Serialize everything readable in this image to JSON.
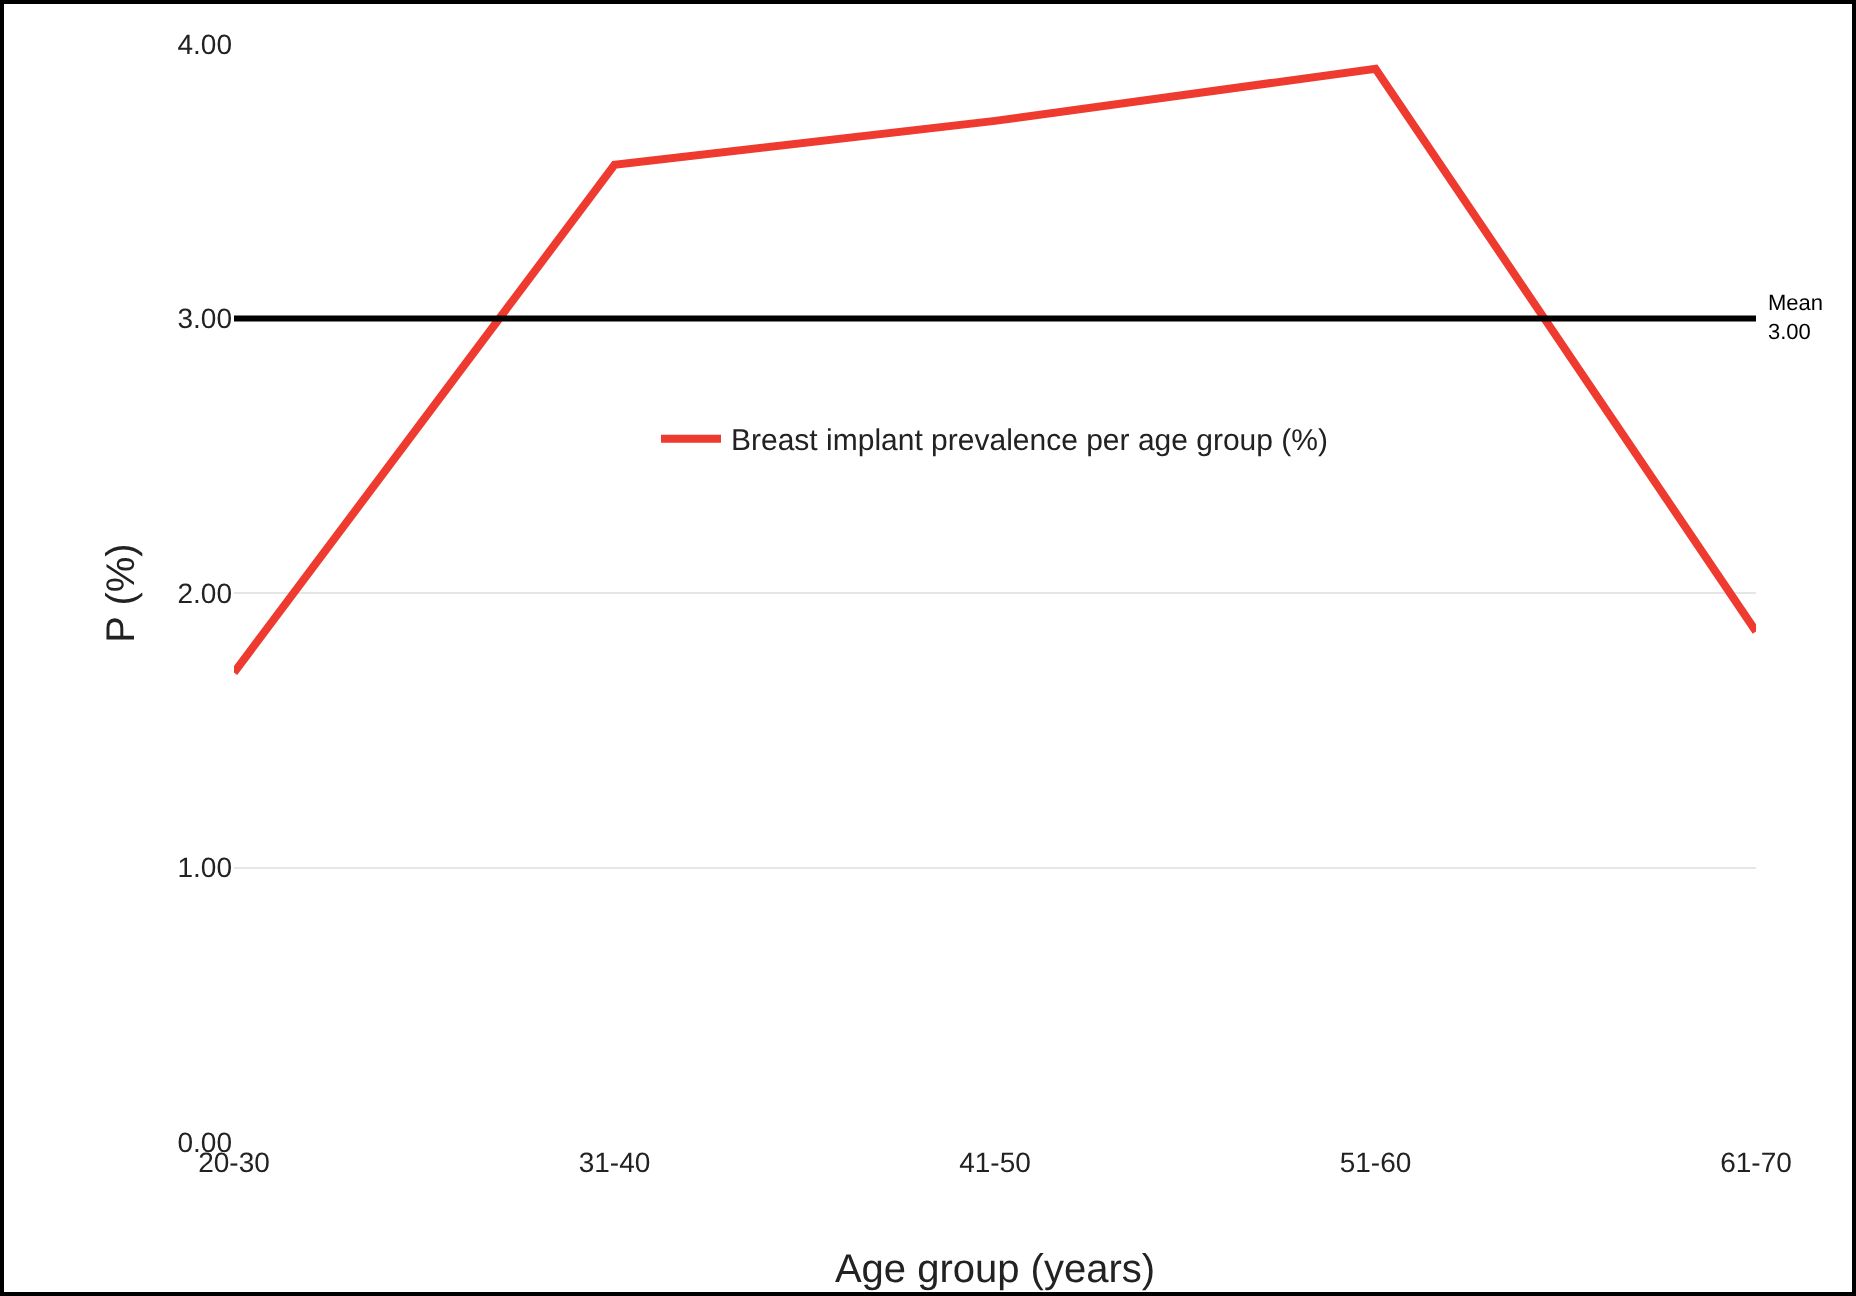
{
  "chart_data": {
    "type": "line",
    "xlabel": "Age group (years)",
    "ylabel": "P (%)",
    "categories": [
      "20-30",
      "31-40",
      "41-50",
      "51-60",
      "61-70"
    ],
    "series": [
      {
        "name": "Breast implant prevalence per age group (%)",
        "color": "#ee3a2f",
        "values": [
          1.71,
          3.56,
          3.72,
          3.91,
          1.86
        ]
      }
    ],
    "ylim": [
      0,
      4
    ],
    "yticks": [
      {
        "value": 0,
        "label": "0.00"
      },
      {
        "value": 1,
        "label": "1.00"
      },
      {
        "value": 2,
        "label": "2.00"
      },
      {
        "value": 3,
        "label": "3.00"
      },
      {
        "value": 4,
        "label": "4.00"
      }
    ],
    "ref_lines": [
      {
        "axis": "y",
        "value": 3,
        "label": "Mean\n3.00",
        "color": "#000000"
      }
    ],
    "grid": "y",
    "legend": "top",
    "marker": "none",
    "line_style": "solid"
  }
}
